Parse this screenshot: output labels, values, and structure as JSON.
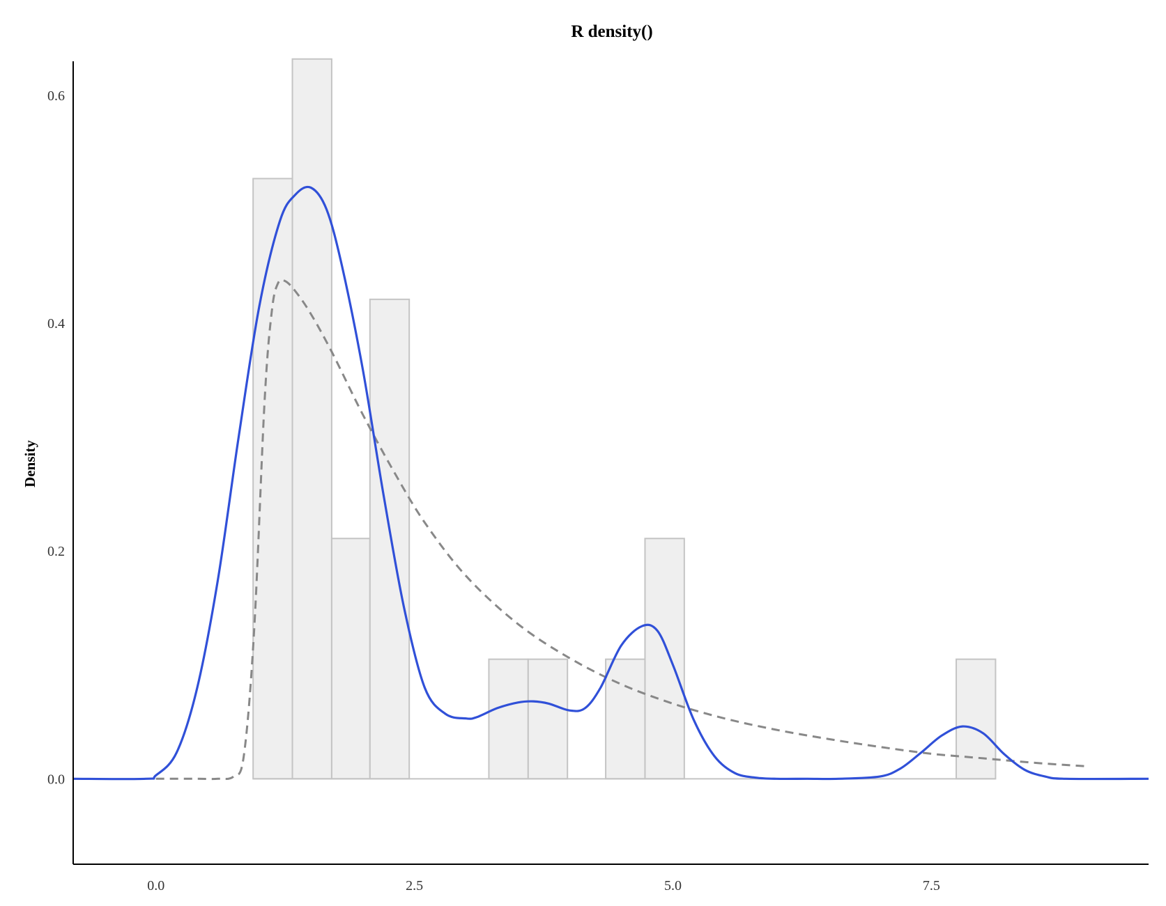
{
  "chart_data": {
    "type": "histogram",
    "title": "R density()",
    "xlabel": "",
    "ylabel": "Density",
    "xlim": [
      -0.8,
      9.6
    ],
    "ylim": [
      -0.075,
      0.63
    ],
    "x_ticks": [
      {
        "value": 0,
        "label": "0.0"
      },
      {
        "value": 2.5,
        "label": "2.5"
      },
      {
        "value": 5,
        "label": "5.0"
      },
      {
        "value": 7.5,
        "label": "7.5"
      }
    ],
    "y_ticks": [
      {
        "value": 0,
        "label": "0.0"
      },
      {
        "value": 0.2,
        "label": "0.2"
      },
      {
        "value": 0.4,
        "label": "0.4"
      },
      {
        "value": 0.6,
        "label": "0.6"
      }
    ],
    "bins": [
      {
        "x0": 0.94,
        "x1": 1.32,
        "density": 0.527
      },
      {
        "x0": 1.32,
        "x1": 1.7,
        "density": 0.632
      },
      {
        "x0": 1.7,
        "x1": 2.07,
        "density": 0.211
      },
      {
        "x0": 2.07,
        "x1": 2.45,
        "density": 0.421
      },
      {
        "x0": 3.22,
        "x1": 3.6,
        "density": 0.105
      },
      {
        "x0": 3.6,
        "x1": 3.98,
        "density": 0.105
      },
      {
        "x0": 4.35,
        "x1": 4.73,
        "density": 0.105
      },
      {
        "x0": 4.73,
        "x1": 5.11,
        "density": 0.211
      },
      {
        "x0": 7.74,
        "x1": 8.12,
        "density": 0.105
      }
    ],
    "series": [
      {
        "style": "solid",
        "color": "#3050d8",
        "x": [
          -0.8,
          -0.1,
          0.0,
          0.2,
          0.4,
          0.6,
          0.8,
          1.0,
          1.2,
          1.35,
          1.5,
          1.65,
          1.8,
          2.0,
          2.2,
          2.4,
          2.6,
          2.8,
          3.0,
          3.1,
          3.3,
          3.5,
          3.65,
          3.8,
          4.0,
          4.15,
          4.3,
          4.5,
          4.7,
          4.85,
          5.0,
          5.2,
          5.4,
          5.6,
          5.8,
          6.0,
          6.3,
          6.6,
          7.0,
          7.2,
          7.4,
          7.6,
          7.8,
          8.0,
          8.2,
          8.4,
          8.6,
          8.8,
          9.6
        ],
        "y": [
          0.0,
          0.0,
          0.003,
          0.023,
          0.08,
          0.175,
          0.3,
          0.415,
          0.49,
          0.513,
          0.519,
          0.5,
          0.45,
          0.36,
          0.25,
          0.15,
          0.08,
          0.057,
          0.053,
          0.054,
          0.062,
          0.067,
          0.068,
          0.066,
          0.06,
          0.062,
          0.08,
          0.117,
          0.134,
          0.13,
          0.1,
          0.052,
          0.02,
          0.005,
          0.001,
          0.0,
          0.0,
          0.0,
          0.002,
          0.009,
          0.023,
          0.038,
          0.046,
          0.04,
          0.022,
          0.008,
          0.002,
          0.0,
          0.0
        ]
      },
      {
        "style": "dashed",
        "color": "#888888",
        "x": [
          0.0,
          0.4,
          0.6,
          0.75,
          0.85,
          0.95,
          1.05,
          1.12,
          1.18,
          1.25,
          1.35,
          1.5,
          1.7,
          2.0,
          2.3,
          2.6,
          3.0,
          3.5,
          4.0,
          4.5,
          5.0,
          5.5,
          6.0,
          6.5,
          7.0,
          7.5,
          8.0,
          8.5,
          9.0
        ],
        "y": [
          0.0,
          0.0,
          0.0,
          0.002,
          0.02,
          0.13,
          0.33,
          0.41,
          0.435,
          0.437,
          0.428,
          0.408,
          0.375,
          0.32,
          0.27,
          0.225,
          0.178,
          0.136,
          0.106,
          0.083,
          0.066,
          0.053,
          0.043,
          0.035,
          0.028,
          0.022,
          0.018,
          0.014,
          0.011
        ]
      }
    ]
  }
}
